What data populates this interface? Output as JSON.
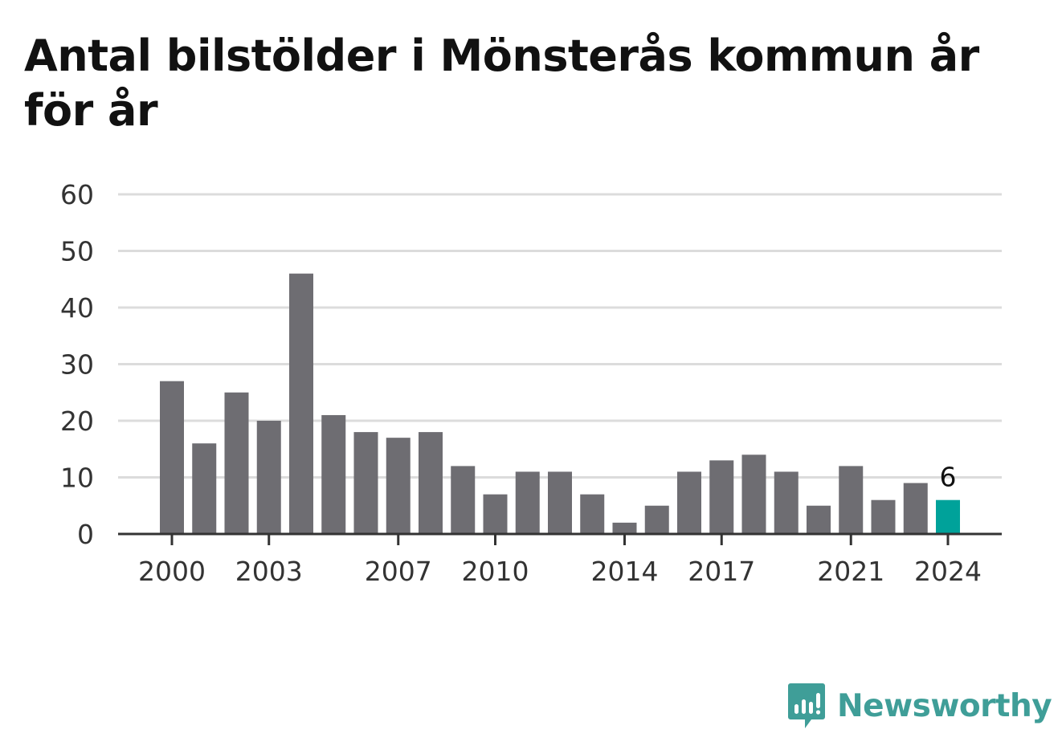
{
  "title": "Antal bilstölder i Mönsterås kommun år för år",
  "brand": {
    "name": "Newsworthy",
    "icon": "newsworthy-logo-icon",
    "color": "#3f9e98"
  },
  "chart_data": {
    "type": "bar",
    "title": "Antal bilstölder i Mönsterås kommun år för år",
    "xlabel": "",
    "ylabel": "",
    "categories": [
      2000,
      2001,
      2002,
      2003,
      2004,
      2005,
      2006,
      2007,
      2008,
      2009,
      2010,
      2011,
      2012,
      2013,
      2014,
      2015,
      2016,
      2017,
      2018,
      2019,
      2020,
      2021,
      2022,
      2023,
      2024
    ],
    "values": [
      27,
      16,
      25,
      20,
      46,
      21,
      18,
      17,
      18,
      12,
      7,
      11,
      11,
      7,
      2,
      5,
      11,
      13,
      14,
      11,
      5,
      12,
      6,
      9,
      6
    ],
    "ylim": [
      0,
      60
    ],
    "yticks": [
      0,
      10,
      20,
      30,
      40,
      50,
      60
    ],
    "xticks": [
      2000,
      2003,
      2007,
      2010,
      2014,
      2017,
      2021,
      2024
    ],
    "grid": true,
    "highlight": {
      "category": 2024,
      "label": "6"
    },
    "colors": {
      "bar": "#6e6d72",
      "highlight": "#00a29a",
      "grid": "#dcdcdc",
      "axis": "#333333"
    }
  }
}
